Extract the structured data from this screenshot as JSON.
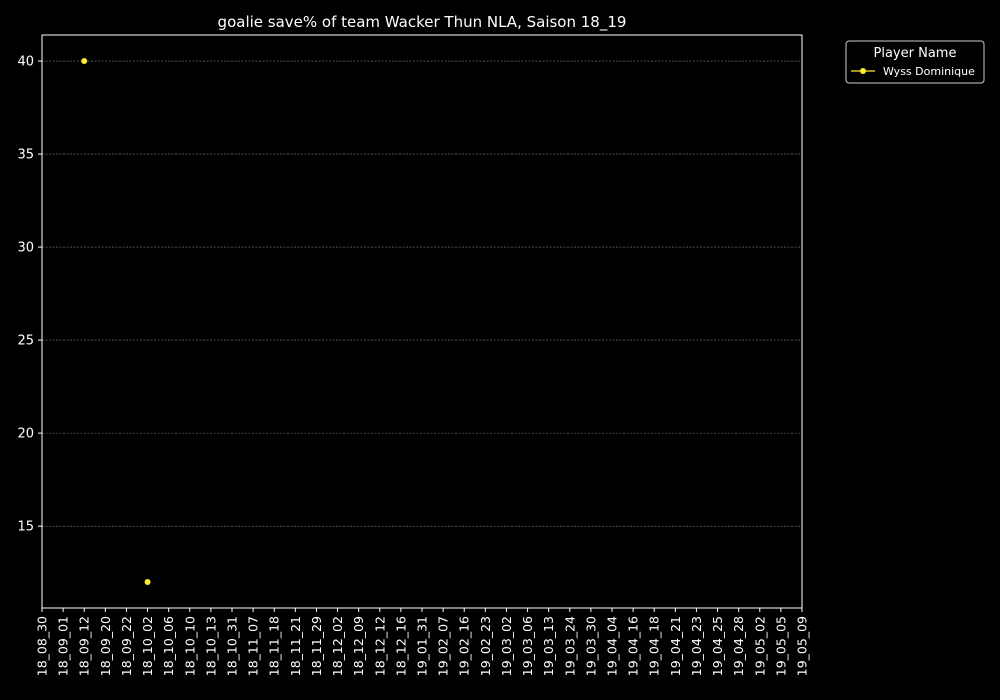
{
  "chart_data": {
    "type": "line",
    "title": "goalie save% of team Wacker Thun NLA, Saison 18_19",
    "xlabel": "",
    "ylabel": "",
    "categories": [
      "18_08_30",
      "18_09_01",
      "18_09_12",
      "18_09_20",
      "18_09_22",
      "18_10_02",
      "18_10_06",
      "18_10_10",
      "18_10_13",
      "18_10_31",
      "18_11_07",
      "18_11_18",
      "18_11_21",
      "18_11_29",
      "18_12_02",
      "18_12_09",
      "18_12_12",
      "18_12_16",
      "19_01_31",
      "19_02_07",
      "19_02_16",
      "19_02_23",
      "19_03_02",
      "19_03_06",
      "19_03_13",
      "19_03_24",
      "19_03_30",
      "19_04_04",
      "19_04_16",
      "19_04_18",
      "19_04_21",
      "19_04_23",
      "19_04_25",
      "19_04_28",
      "19_05_02",
      "19_05_05",
      "19_05_09"
    ],
    "ylim": [
      10.6,
      41.4
    ],
    "yticks": [
      15,
      20,
      25,
      30,
      35,
      40
    ],
    "grid": true,
    "legend": {
      "title": "Player Name",
      "placement": "outside-top-right"
    },
    "series": [
      {
        "name": "Wyss Dominique",
        "color": "#ffea2e",
        "values": [
          null,
          null,
          40,
          null,
          null,
          12,
          null,
          null,
          null,
          null,
          null,
          null,
          null,
          null,
          null,
          null,
          null,
          null,
          null,
          null,
          null,
          null,
          null,
          null,
          null,
          null,
          null,
          null,
          null,
          null,
          null,
          null,
          null,
          null,
          null,
          null,
          null
        ]
      }
    ]
  }
}
